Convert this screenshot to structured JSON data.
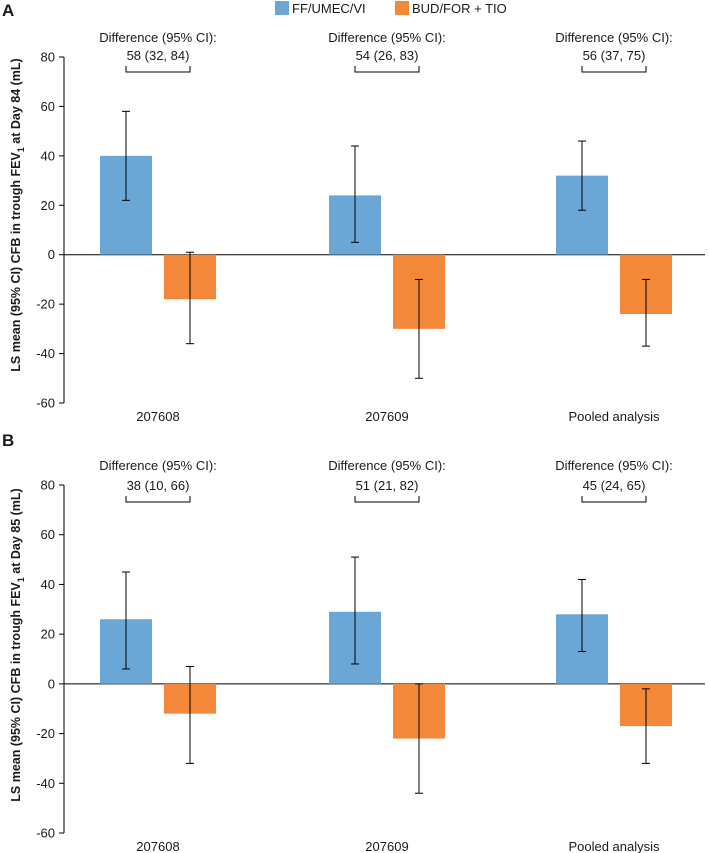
{
  "legend": [
    {
      "label": "FF/UMEC/VI",
      "color": "#6aa6d6"
    },
    {
      "label": "BUD/FOR + TIO",
      "color": "#f4883a"
    }
  ],
  "chart_data": [
    {
      "panel": "A",
      "type": "bar",
      "ylabel_parts": [
        "LS mean (95% CI) CFB in trough FEV",
        "1",
        " at Day 84 (mL)"
      ],
      "ylim": [
        -60,
        80
      ],
      "yticks": [
        80,
        60,
        40,
        20,
        0,
        -20,
        -40,
        -60
      ],
      "categories": [
        "207608",
        "207609",
        "Pooled analysis"
      ],
      "series": [
        {
          "name": "FF/UMEC/VI",
          "values": [
            40,
            24,
            32
          ],
          "ci_low": [
            22,
            5,
            18
          ],
          "ci_high": [
            58,
            44,
            46
          ]
        },
        {
          "name": "BUD/FOR + TIO",
          "values": [
            -18,
            -30,
            -24
          ],
          "ci_low": [
            -36,
            -50,
            -37
          ],
          "ci_high": [
            1,
            -10,
            -10
          ]
        }
      ],
      "differences": [
        {
          "label": "Difference (95% CI):",
          "value": "58 (32, 84)"
        },
        {
          "label": "Difference (95% CI):",
          "value": "54 (26, 83)"
        },
        {
          "label": "Difference (95% CI):",
          "value": "56 (37, 75)"
        }
      ]
    },
    {
      "panel": "B",
      "type": "bar",
      "ylabel_parts": [
        "LS mean (95% CI) CFB in trough FEV",
        "1",
        " at Day 85 (mL)"
      ],
      "ylim": [
        -60,
        80
      ],
      "yticks": [
        80,
        60,
        40,
        20,
        0,
        -20,
        -40,
        -60
      ],
      "categories": [
        "207608",
        "207609",
        "Pooled analysis"
      ],
      "series": [
        {
          "name": "FF/UMEC/VI",
          "values": [
            26,
            29,
            28
          ],
          "ci_low": [
            6,
            8,
            13
          ],
          "ci_high": [
            45,
            51,
            42
          ]
        },
        {
          "name": "BUD/FOR + TIO",
          "values": [
            -12,
            -22,
            -17
          ],
          "ci_low": [
            -32,
            -44,
            -32
          ],
          "ci_high": [
            7,
            0,
            -2
          ]
        }
      ],
      "differences": [
        {
          "label": "Difference (95% CI):",
          "value": "38 (10, 66)"
        },
        {
          "label": "Difference (95% CI):",
          "value": "51 (21, 82)"
        },
        {
          "label": "Difference (95% CI):",
          "value": "45 (24, 65)"
        }
      ]
    }
  ]
}
